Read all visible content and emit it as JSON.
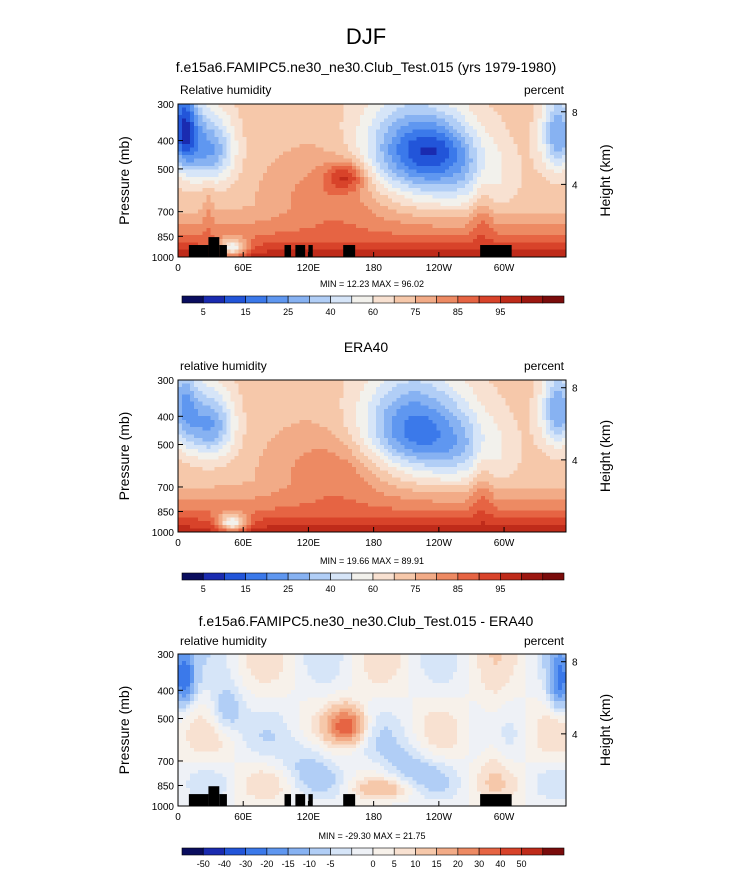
{
  "page_title": "DJF",
  "colors": {
    "hum_scale": [
      "#0a0d5e",
      "#1a2bb0",
      "#2255d9",
      "#3b79ea",
      "#5f97f0",
      "#87b2f2",
      "#b1cef6",
      "#d6e5f8",
      "#f2f1ec",
      "#f8e1d1",
      "#f6c8aa",
      "#f2ab87",
      "#ed8a63",
      "#e66443",
      "#d8432a",
      "#bf2b1a",
      "#9c1710",
      "#7a0c0b"
    ],
    "diff_scale": [
      "#0a0d5e",
      "#1a2bb0",
      "#2255d9",
      "#3b79ea",
      "#5f97f0",
      "#87b2f2",
      "#b1cef6",
      "#d6e5f8",
      "#eef1f6",
      "#f7f1ea",
      "#f8e1d1",
      "#f6c8aa",
      "#f2ab87",
      "#ed8a63",
      "#e66443",
      "#d8432a",
      "#bf2b1a",
      "#7a0c0b"
    ],
    "terrain": "#000000"
  },
  "chart_data": [
    {
      "type": "heatmap",
      "title": "f.e15a6.FAMIPC5.ne30_ne30.Club_Test.015 (yrs 1979-1980)",
      "left_string": "Relative humidity",
      "right_string": "percent",
      "ylabel": "Pressure (mb)",
      "ylabel_right": "Height (km)",
      "x_ticks": [
        "0",
        "60E",
        "120E",
        "180",
        "120W",
        "60W"
      ],
      "x_tick_lon": [
        0,
        60,
        120,
        180,
        240,
        300
      ],
      "xlim": [
        0,
        357
      ],
      "y_ticks": [
        "300",
        "400",
        "500",
        "700",
        "850",
        "1000"
      ],
      "y_tick_p": [
        300,
        400,
        500,
        700,
        850,
        1000
      ],
      "ylim": [
        300,
        1000
      ],
      "y_log": true,
      "height_ticks": [
        "8",
        "4"
      ],
      "height_tick_km": [
        8,
        4
      ],
      "min_max": "MIN =  12.23   MAX =  96.02",
      "scale": "hum",
      "colorbar_labels": [
        "5",
        "15",
        "25",
        "40",
        "60",
        "75",
        "85",
        "95"
      ],
      "terrain": true
    },
    {
      "type": "heatmap",
      "title": "ERA40",
      "left_string": "relative humidity",
      "right_string": "percent",
      "ylabel": "Pressure (mb)",
      "ylabel_right": "Height (km)",
      "x_ticks": [
        "0",
        "60E",
        "120E",
        "180",
        "120W",
        "60W"
      ],
      "x_tick_lon": [
        0,
        60,
        120,
        180,
        240,
        300
      ],
      "xlim": [
        0,
        357
      ],
      "y_ticks": [
        "300",
        "400",
        "500",
        "700",
        "850",
        "1000"
      ],
      "y_tick_p": [
        300,
        400,
        500,
        700,
        850,
        1000
      ],
      "ylim": [
        300,
        1000
      ],
      "y_log": true,
      "height_ticks": [
        "8",
        "4"
      ],
      "height_tick_km": [
        8,
        4
      ],
      "min_max": "MIN =  19.66   MAX =  89.91",
      "scale": "hum",
      "colorbar_labels": [
        "5",
        "15",
        "25",
        "40",
        "60",
        "75",
        "85",
        "95"
      ],
      "terrain": false
    },
    {
      "type": "heatmap",
      "title": "f.e15a6.FAMIPC5.ne30_ne30.Club_Test.015 - ERA40",
      "left_string": "relative humidity",
      "right_string": "percent",
      "ylabel": "Pressure (mb)",
      "ylabel_right": "Height (km)",
      "x_ticks": [
        "0",
        "60E",
        "120E",
        "180",
        "120W",
        "60W"
      ],
      "x_tick_lon": [
        0,
        60,
        120,
        180,
        240,
        300
      ],
      "xlim": [
        0,
        357
      ],
      "y_ticks": [
        "300",
        "400",
        "500",
        "700",
        "850",
        "1000"
      ],
      "y_tick_p": [
        300,
        400,
        500,
        700,
        850,
        1000
      ],
      "ylim": [
        300,
        1000
      ],
      "y_log": true,
      "height_ticks": [
        "8",
        "4"
      ],
      "height_tick_km": [
        8,
        4
      ],
      "min_max": "MIN = -29.30   MAX =  21.75",
      "scale": "diff",
      "colorbar_labels": [
        "-50",
        "-40",
        "-30",
        "-20",
        "-15",
        "-10",
        "-5",
        "0",
        "5",
        "10",
        "15",
        "20",
        "30",
        "40",
        "50"
      ],
      "terrain": true
    }
  ]
}
